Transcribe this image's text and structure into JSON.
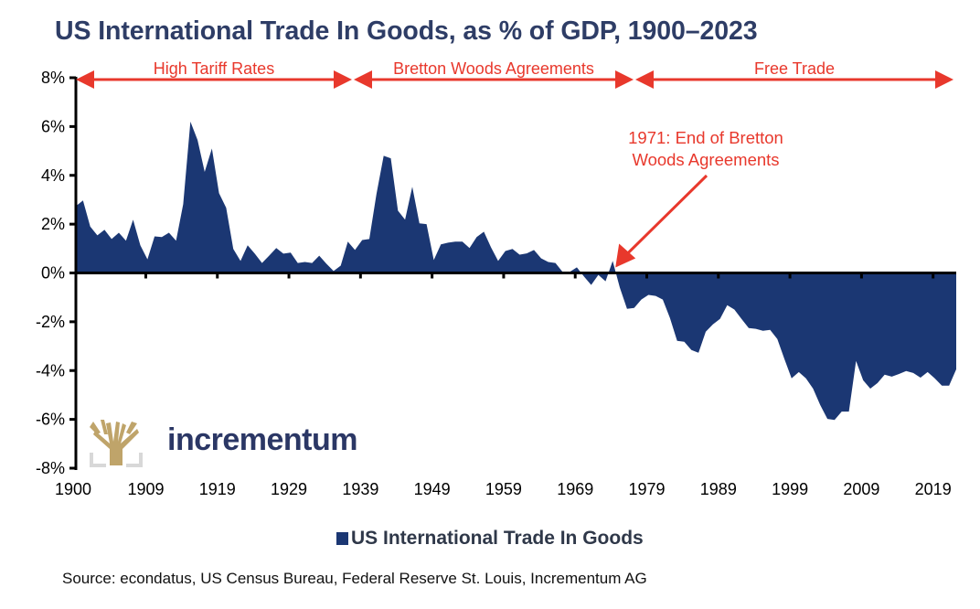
{
  "title": "US International Trade In Goods, as % of GDP, 1900–2023",
  "legend": {
    "label": "US International Trade In Goods",
    "color": "#1b3773"
  },
  "source": "Source: econdatus, US Census Bureau, Federal Reserve St. Louis, Incrementum AG",
  "logo": {
    "text": "incrementum",
    "icon": "tree-icon",
    "gold": "#bfa46a",
    "grey": "#d8d8d8"
  },
  "colors": {
    "series": "#1b3773",
    "annotation": "#e8382c",
    "title": "#2e3d66"
  },
  "chart_data": {
    "type": "area",
    "title": "US International Trade In Goods, as % of GDP, 1900–2023",
    "xlabel": "",
    "ylabel": "",
    "xlim": [
      1900,
      2023
    ],
    "ylim": [
      -8,
      8
    ],
    "yticks": [
      8,
      6,
      4,
      2,
      0,
      -2,
      -4,
      -6,
      -8
    ],
    "ytick_labels": [
      "8%",
      "6%",
      "4%",
      "2%",
      "0%",
      "-2%",
      "-4%",
      "-6%",
      "-8%"
    ],
    "xtick_labels": [
      "1900",
      "1909",
      "1919",
      "1929",
      "1939",
      "1949",
      "1959",
      "1969",
      "1979",
      "1989",
      "1999",
      "2009",
      "2019"
    ],
    "grid": false,
    "legend_position": "bottom",
    "series": [
      {
        "name": "US International Trade In Goods",
        "start_year": 1900,
        "values": [
          2.74,
          2.97,
          1.9,
          1.54,
          1.77,
          1.39,
          1.65,
          1.32,
          2.18,
          1.13,
          0.56,
          1.5,
          1.47,
          1.65,
          1.32,
          2.82,
          6.2,
          5.45,
          4.14,
          5.1,
          3.27,
          2.67,
          0.98,
          0.49,
          1.13,
          0.79,
          0.41,
          0.71,
          1.02,
          0.79,
          0.83,
          0.41,
          0.45,
          0.41,
          0.71,
          0.38,
          0.08,
          0.3,
          1.28,
          0.94,
          1.35,
          1.39,
          3.23,
          4.8,
          4.7,
          2.55,
          2.18,
          3.53,
          2.03,
          2.0,
          0.53,
          1.17,
          1.24,
          1.28,
          1.28,
          1.02,
          1.47,
          1.69,
          1.05,
          0.49,
          0.9,
          0.98,
          0.75,
          0.8,
          0.94,
          0.6,
          0.45,
          0.41,
          0.04,
          0.04,
          0.23,
          -0.15,
          -0.49,
          -0.08,
          -0.34,
          0.49,
          -0.6,
          -1.47,
          -1.43,
          -1.09,
          -0.9,
          -0.94,
          -1.09,
          -1.84,
          -2.78,
          -2.82,
          -3.16,
          -3.27,
          -2.41,
          -2.11,
          -1.88,
          -1.32,
          -1.5,
          -1.88,
          -2.26,
          -2.29,
          -2.37,
          -2.33,
          -2.71,
          -3.53,
          -4.32,
          -4.06,
          -4.32,
          -4.74,
          -5.41,
          -5.98,
          -6.02,
          -5.68,
          -5.68,
          -3.61,
          -4.4,
          -4.74,
          -4.51,
          -4.17,
          -4.25,
          -4.14,
          -4.02,
          -4.1,
          -4.29,
          -4.06,
          -4.32,
          -4.62,
          -4.62,
          -3.95
        ]
      }
    ],
    "eras": [
      {
        "label": "High Tariff Rates",
        "from": 1900,
        "to": 1938
      },
      {
        "label": "Bretton Woods Agreements",
        "from": 1939,
        "to": 1977
      },
      {
        "label": "Free Trade",
        "from": 1978,
        "to": 2023
      }
    ],
    "annotations": [
      {
        "lines": [
          "1971: End of Bretton",
          "Woods Agreements"
        ],
        "points_to_year": 1975,
        "points_to_value": 0
      }
    ]
  }
}
